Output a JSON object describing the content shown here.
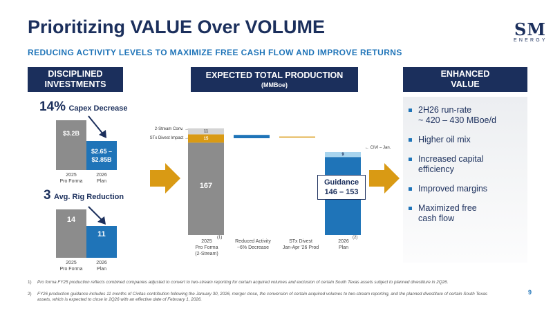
{
  "title": "Prioritizing VALUE Over VOLUME",
  "subtitle": "REDUCING ACTIVITY LEVELS TO MAXIMIZE FREE CASH FLOW AND IMPROVE RETURNS",
  "logo": {
    "main": "SM",
    "sub": "ENERGY"
  },
  "colors": {
    "navy": "#1b2f5c",
    "blue": "#1f74b8",
    "gray": "#8c8c8c",
    "gold": "#d99a14",
    "light_blue": "#a8d4ee",
    "light_gray": "#d4d4d4"
  },
  "left": {
    "header": [
      "DISCIPLINED",
      "INVESTMENTS"
    ],
    "capex": {
      "callout_big": "14%",
      "callout_small": "Capex Decrease",
      "bar_2025": "$3.2B",
      "bar_2026": [
        "$2.65 –",
        "$2.85B"
      ],
      "label_2025": [
        "2025",
        "Pro Forma"
      ],
      "label_2026": [
        "2026",
        "Plan"
      ]
    },
    "rigs": {
      "callout_big": "3",
      "callout_small": "Avg. Rig Reduction",
      "bar_2025": "14",
      "bar_2026": "11",
      "label_2025": [
        "2025",
        "Pro Forma"
      ],
      "label_2026": [
        "2026",
        "Plan"
      ]
    }
  },
  "middle": {
    "header": "EXPECTED TOTAL PRODUCTION",
    "subheader": "(MMBoe)",
    "annotation_conv": "2-Stream Conv.",
    "annotation_divest": "STx Divest Impact",
    "annotation_civi": "← CIVI – Jan.",
    "guidance": [
      "Guidance",
      "146 – 153"
    ],
    "footnote_marks": [
      "(1)",
      "(2)"
    ]
  },
  "chart_data": {
    "type": "bar",
    "subtype": "waterfall",
    "title": "EXPECTED TOTAL PRODUCTION",
    "ylabel": "(MMBoe)",
    "categories": [
      [
        "2025",
        "Pro Forma",
        "(2-Stream)"
      ],
      [
        "Reduced Activity",
        "~6% Decrease"
      ],
      [
        "STx Divest",
        "Jan-Apr '26 Prod"
      ],
      [
        "2026",
        "Plan"
      ]
    ],
    "start_bar": {
      "base": 167,
      "stx_divest_impact": 15,
      "two_stream_conv": 11,
      "total": 193
    },
    "steps": [
      {
        "category": "Reduced Activity",
        "value": -12
      },
      {
        "category": "STx Divest",
        "value": -3
      }
    ],
    "end_bar": {
      "base": 141,
      "civi_jan": 9,
      "total": 150,
      "guidance_low": 146,
      "guidance_high": 153
    },
    "data_labels": [
      "167",
      "15",
      "11",
      "9"
    ],
    "ylim": [
      0,
      200
    ],
    "grid": false
  },
  "right": {
    "header": [
      "ENHANCED",
      "VALUE"
    ],
    "bullets": [
      [
        "2H26 run-rate",
        "~ 420 – 430 MBoe/d"
      ],
      [
        "Higher oil mix"
      ],
      [
        "Increased capital",
        "efficiency"
      ],
      [
        "Improved margins"
      ],
      [
        "Maximized free",
        "cash flow"
      ]
    ]
  },
  "footnotes": [
    {
      "num": "1)",
      "text": "Pro forma FY25 production reflects combined companies adjusted to convert to two-stream reporting for certain acquired volumes and exclusion of certain South Texas assets subject to planned divestiture in 2Q26."
    },
    {
      "num": "2)",
      "text": "FY26 production guidance includes 11 months of Civitas contribution following the January 30, 2026, merger close, the conversion of certain acquired volumes to two-stream reporting, and the planned divestiture of certain South Texas assets, which is expected to close in 2Q26 with an effective date of February 1, 2026."
    }
  ],
  "page_number": "9"
}
